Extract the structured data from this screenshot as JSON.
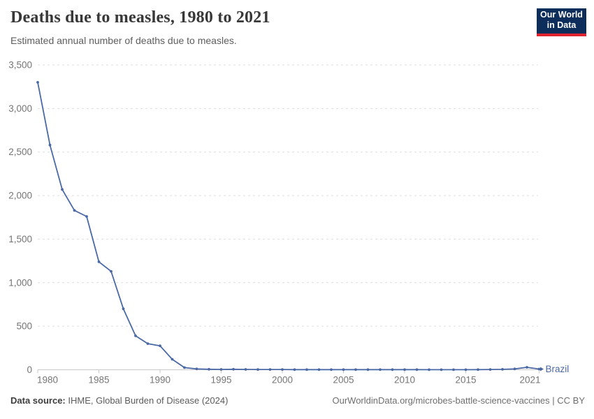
{
  "header": {
    "title": "Deaths due to measles, 1980 to 2021",
    "subtitle": "Estimated annual number of deaths due to measles.",
    "logo": {
      "line1": "Our World",
      "line2": "in Data",
      "bg_color": "#0d2e5b",
      "accent_color": "#e0232e"
    }
  },
  "chart_data": {
    "type": "line",
    "title": "Deaths due to measles, 1980 to 2021",
    "xlabel": "",
    "ylabel": "",
    "xlim": [
      1980,
      2021
    ],
    "ylim": [
      0,
      3500
    ],
    "x_ticks": [
      1980,
      1985,
      1990,
      1995,
      2000,
      2005,
      2010,
      2015,
      2021
    ],
    "y_ticks": [
      0,
      500,
      1000,
      1500,
      2000,
      2500,
      3000,
      3500
    ],
    "grid": "horizontal-dashed",
    "legend_position": "end-of-line",
    "series": [
      {
        "name": "Brazil",
        "color": "#4b69a5",
        "x": [
          1980,
          1981,
          1982,
          1983,
          1984,
          1985,
          1986,
          1987,
          1988,
          1989,
          1990,
          1991,
          1992,
          1993,
          1994,
          1995,
          1996,
          1997,
          1998,
          1999,
          2000,
          2001,
          2002,
          2003,
          2004,
          2005,
          2006,
          2007,
          2008,
          2009,
          2010,
          2011,
          2012,
          2013,
          2014,
          2015,
          2016,
          2017,
          2018,
          2019,
          2020,
          2021
        ],
        "values": [
          3300,
          2580,
          2070,
          1830,
          1760,
          1240,
          1130,
          700,
          390,
          300,
          275,
          120,
          25,
          10,
          6,
          4,
          6,
          4,
          3,
          3,
          3,
          2,
          2,
          2,
          2,
          2,
          2,
          2,
          2,
          2,
          2,
          2,
          1,
          1,
          1,
          1,
          2,
          3,
          5,
          10,
          28,
          8
        ]
      }
    ]
  },
  "footer": {
    "source_label": "Data source:",
    "source_text": " IHME, Global Burden of Disease (2024)",
    "link_text": "OurWorldinData.org/microbes-battle-science-vaccines | CC BY"
  },
  "colors": {
    "line": "#4b69a5",
    "axis": "#c8c8c8",
    "gridline": "#dedede",
    "tick_label": "#757575",
    "title": "#383838",
    "subtitle": "#5e5e5e"
  }
}
